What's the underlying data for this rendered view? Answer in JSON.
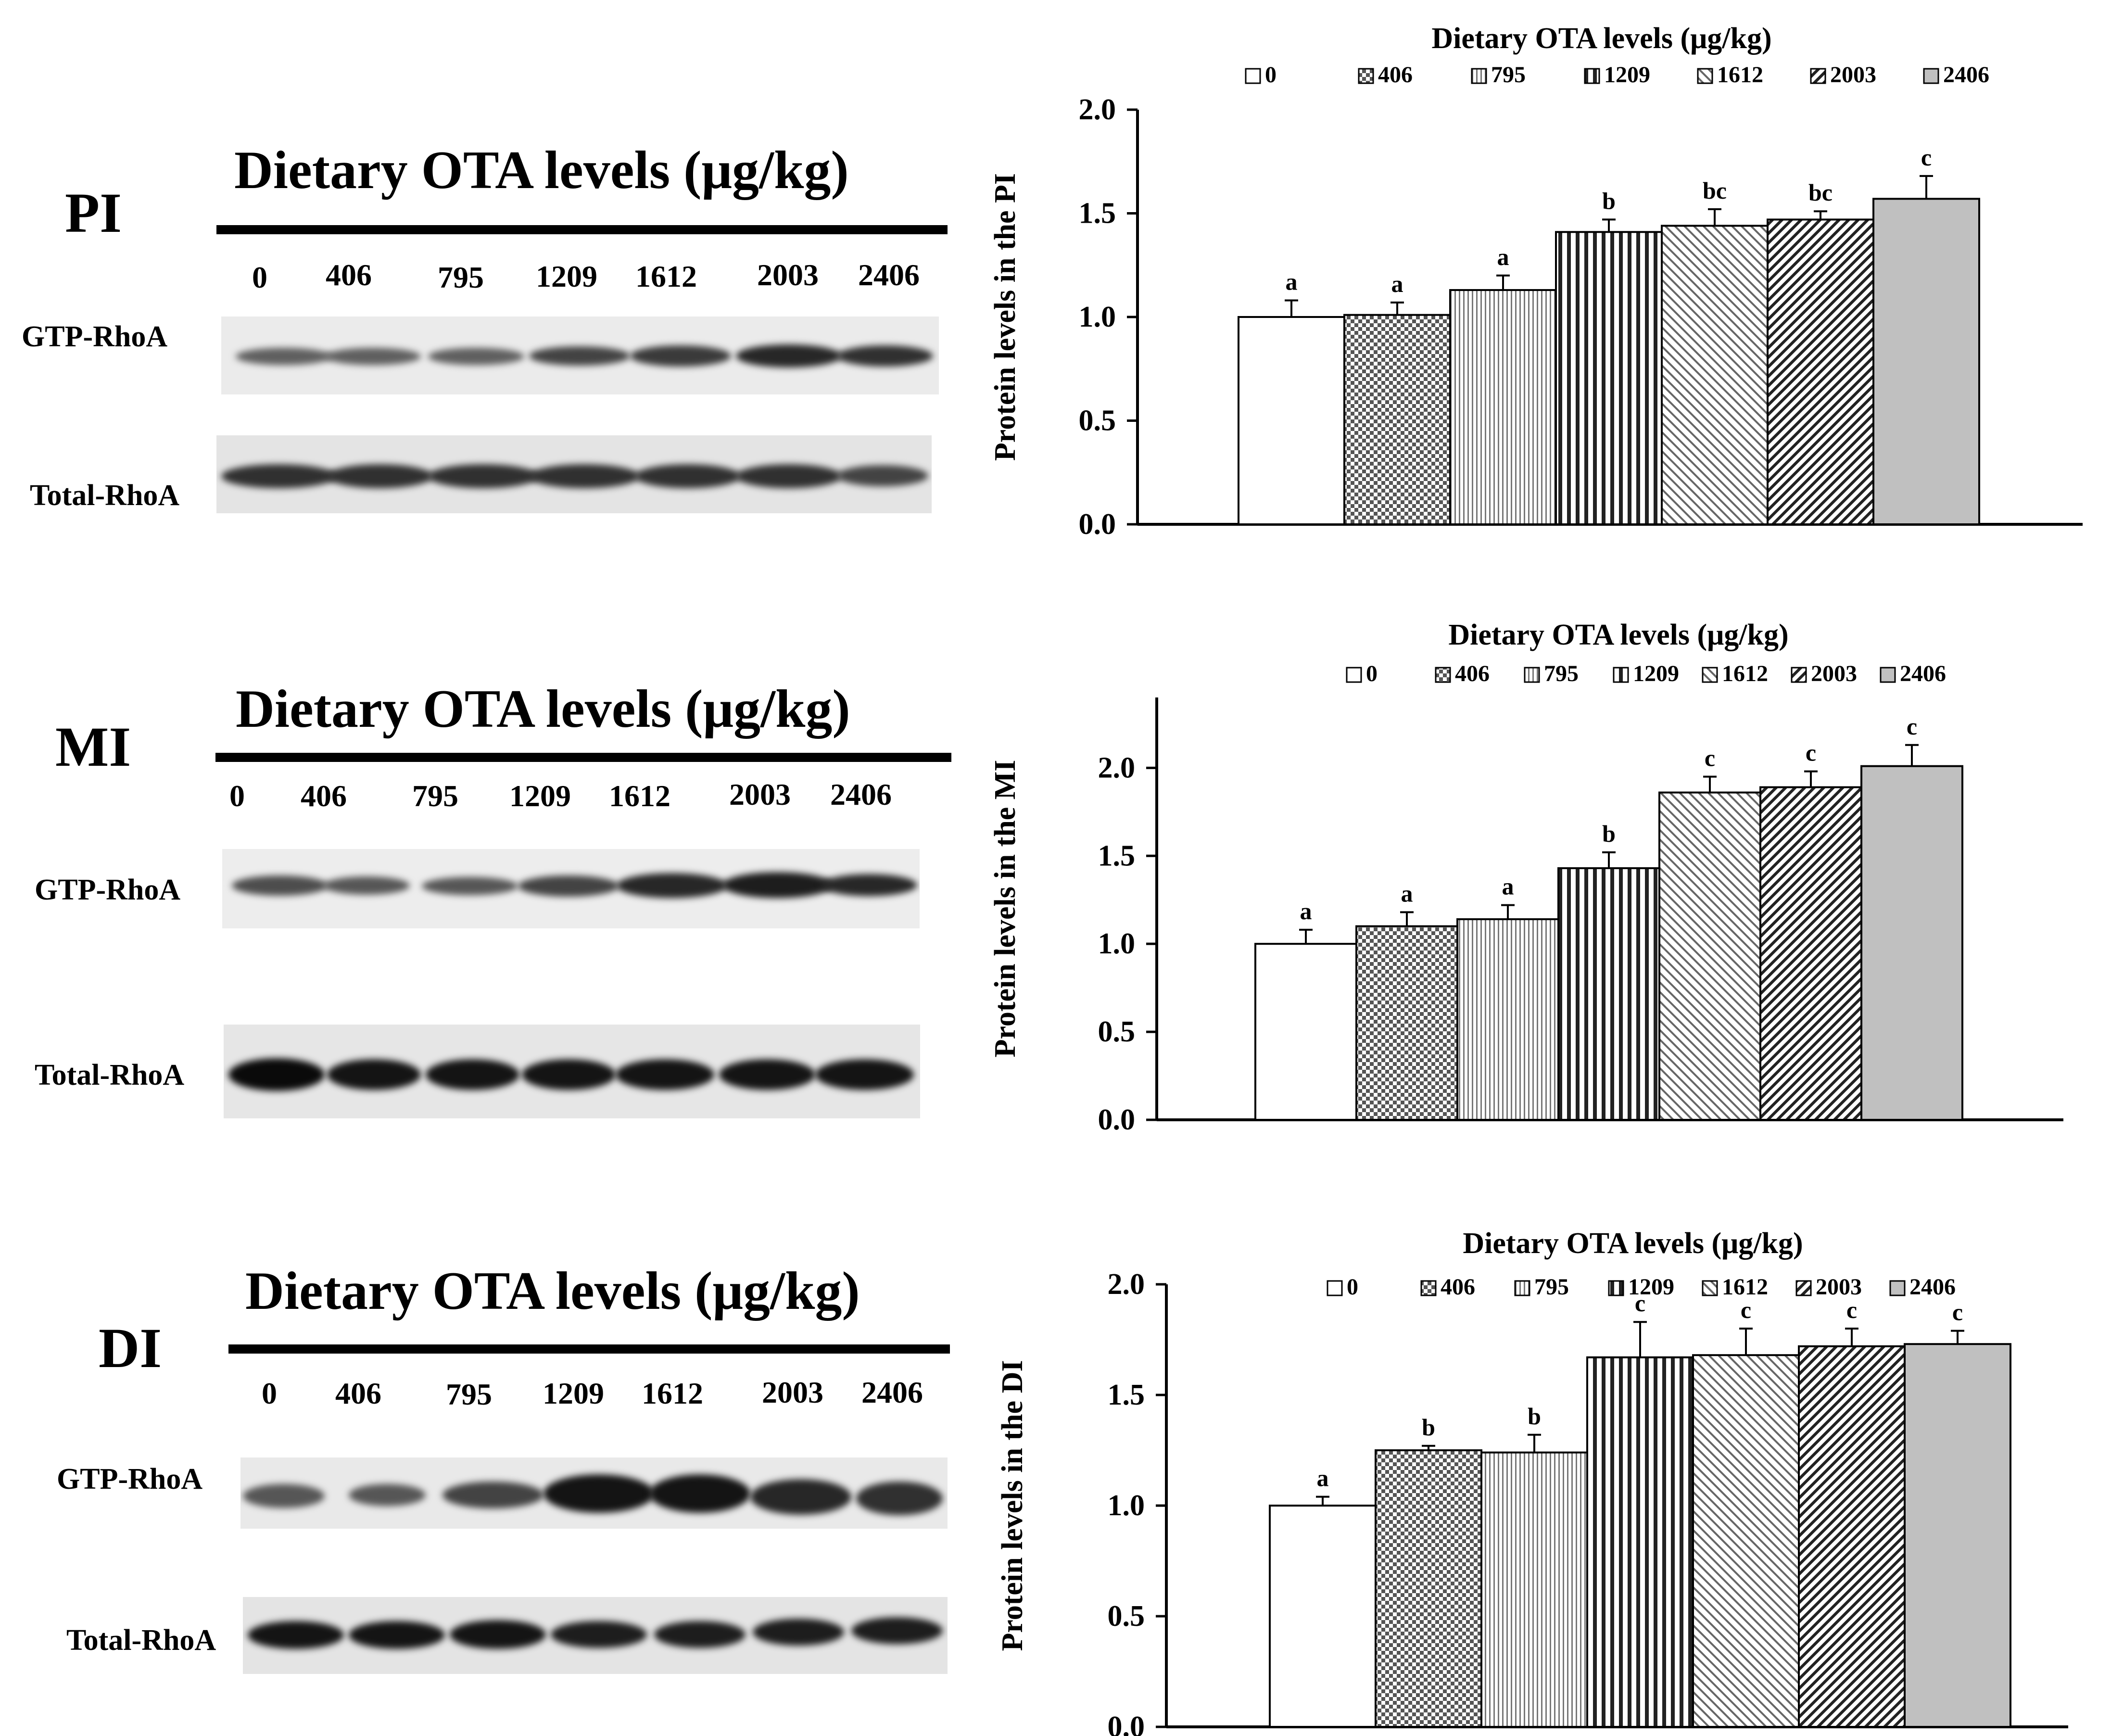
{
  "colors": {
    "ink": "#000000",
    "bar_fill_2406": "#c0c0c0",
    "background": "#ffffff"
  },
  "panels": [
    {
      "letter": "PI",
      "blot_title": "Dietary OTA levels (μg/kg)",
      "lanes": [
        "0",
        "406",
        "795",
        "1209",
        "1612",
        "2003",
        "2406"
      ],
      "row_labels": [
        "GTP-RhoA",
        "Total-RhoA"
      ],
      "gtp_intensity": [
        0.55,
        0.55,
        0.55,
        0.7,
        0.75,
        0.85,
        0.8
      ],
      "total_intensity": [
        0.8,
        0.8,
        0.8,
        0.8,
        0.8,
        0.8,
        0.7
      ]
    },
    {
      "letter": "MI",
      "blot_title": "Dietary OTA levels (μg/kg)",
      "lanes": [
        "0",
        "406",
        "795",
        "1209",
        "1612",
        "2003",
        "2406"
      ],
      "row_labels": [
        "GTP-RhoA",
        "Total-RhoA"
      ],
      "gtp_intensity": [
        0.65,
        0.6,
        0.6,
        0.7,
        0.85,
        0.9,
        0.85
      ],
      "total_intensity": [
        1.0,
        0.95,
        0.95,
        0.95,
        0.95,
        0.95,
        0.95
      ]
    },
    {
      "letter": "DI",
      "blot_title": "Dietary OTA levels (μg/kg)",
      "lanes": [
        "0",
        "406",
        "795",
        "1209",
        "1612",
        "2003",
        "2406"
      ],
      "row_labels": [
        "GTP-RhoA",
        "Total-RhoA"
      ],
      "gtp_intensity": [
        0.6,
        0.6,
        0.7,
        0.95,
        0.95,
        0.85,
        0.8
      ],
      "total_intensity": [
        0.95,
        0.95,
        0.95,
        0.9,
        0.9,
        0.9,
        0.9
      ]
    }
  ],
  "chart_data": [
    {
      "type": "bar",
      "title": "Dietary OTA levels (μg/kg)",
      "categories": [
        "0",
        "406",
        "795",
        "1209",
        "1612",
        "2003",
        "2406"
      ],
      "legend": [
        "0",
        "406",
        "795",
        "1209",
        "1612",
        "2003",
        "2406"
      ],
      "values": [
        1.0,
        1.01,
        1.13,
        1.41,
        1.44,
        1.47,
        1.57
      ],
      "errors": [
        0.08,
        0.06,
        0.07,
        0.06,
        0.08,
        0.04,
        0.11
      ],
      "letters": [
        "a",
        "a",
        "a",
        "b",
        "bc",
        "bc",
        "c"
      ],
      "ylabel": "Protein levels in the PI",
      "xlabel": "",
      "ylim": [
        0,
        2.0
      ],
      "yticks": [
        "0.0",
        "0.5",
        "1.0",
        "1.5",
        "2.0"
      ]
    },
    {
      "type": "bar",
      "title": "Dietary OTA levels (μg/kg)",
      "categories": [
        "0",
        "406",
        "795",
        "1209",
        "1612",
        "2003",
        "2406"
      ],
      "legend": [
        "0",
        "406",
        "795",
        "1209",
        "1612",
        "2003",
        "2406"
      ],
      "values": [
        1.0,
        1.1,
        1.14,
        1.43,
        1.86,
        1.89,
        2.01
      ],
      "errors": [
        0.08,
        0.08,
        0.08,
        0.09,
        0.09,
        0.09,
        0.12
      ],
      "letters": [
        "a",
        "a",
        "a",
        "b",
        "c",
        "c",
        "c"
      ],
      "ylabel": "Protein levels in the MI",
      "xlabel": "",
      "ylim": [
        0,
        2.4
      ],
      "yticks": [
        "0.0",
        "0.5",
        "1.0",
        "1.5",
        "2.0"
      ]
    },
    {
      "type": "bar",
      "title": "Dietary OTA levels (μg/kg)",
      "categories": [
        "0",
        "406",
        "795",
        "1209",
        "1612",
        "2003",
        "2406"
      ],
      "legend": [
        "0",
        "406",
        "795",
        "1209",
        "1612",
        "2003",
        "2406"
      ],
      "values": [
        1.0,
        1.25,
        1.24,
        1.67,
        1.68,
        1.72,
        1.73
      ],
      "errors": [
        0.04,
        0.02,
        0.08,
        0.16,
        0.12,
        0.08,
        0.06
      ],
      "letters": [
        "a",
        "b",
        "b",
        "c",
        "c",
        "c",
        "c"
      ],
      "ylabel": "Protein levels in the DI",
      "xlabel": "",
      "ylim": [
        0,
        2.0
      ],
      "yticks": [
        "0.0",
        "0.5",
        "1.0",
        "1.5",
        "2.0"
      ]
    }
  ]
}
